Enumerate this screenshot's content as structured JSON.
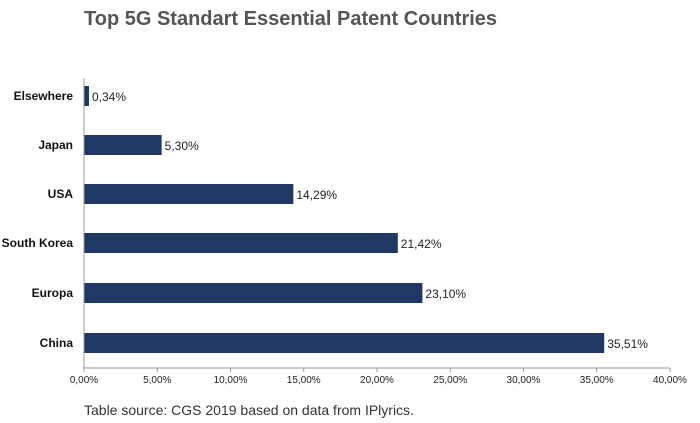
{
  "chart_data": {
    "type": "bar",
    "orientation": "horizontal",
    "title": "Top 5G Standart Essential Patent Countries",
    "categories": [
      "Elsewhere",
      "Japan",
      "USA",
      "South Korea",
      "Europa",
      "China"
    ],
    "values": [
      0.34,
      5.3,
      14.29,
      21.42,
      23.1,
      35.51
    ],
    "data_labels": [
      "0,34%",
      "5,30%",
      "14,29%",
      "21,42%",
      "23,10%",
      "35,51%"
    ],
    "xlim": [
      0,
      40
    ],
    "xticks": [
      0,
      5,
      10,
      15,
      20,
      25,
      30,
      35,
      40
    ],
    "xtick_labels": [
      "0,00%",
      "5,00%",
      "10,00%",
      "15,00%",
      "20,00%",
      "25,00%",
      "30,00%",
      "35,00%",
      "40,00%"
    ],
    "xlabel": "",
    "ylabel": "",
    "grid": false,
    "bar_color": "#1f3864"
  },
  "source_note": "Table source: CGS 2019 based on data from IPlyrics."
}
